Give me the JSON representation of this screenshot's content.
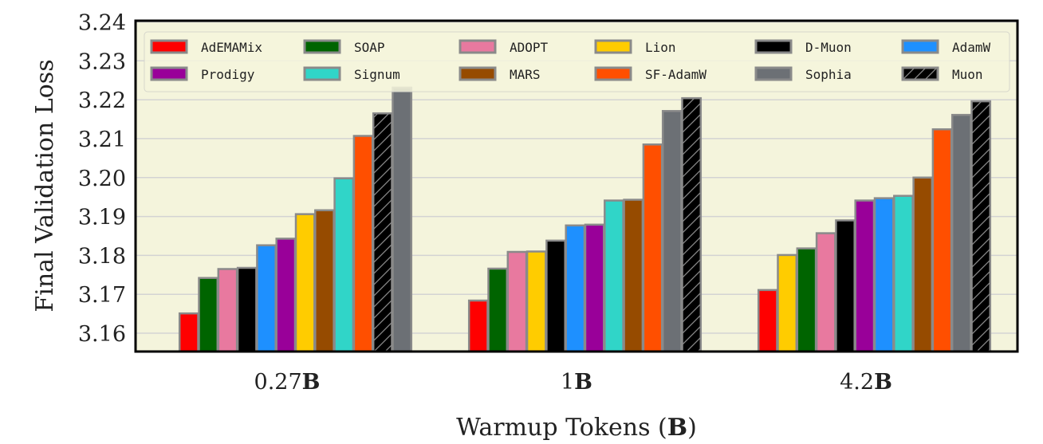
{
  "chart_data": {
    "type": "bar",
    "title": "",
    "xlabel": "Warmup Tokens (B)",
    "xlabel_parts": {
      "text": "Warmup Tokens (",
      "bold": "B",
      "close": ")"
    },
    "ylabel": "Final Validation Loss",
    "ylim": [
      3.1553,
      3.2403
    ],
    "yticks": [
      "3.16",
      "3.17",
      "3.18",
      "3.19",
      "3.20",
      "3.21",
      "3.22",
      "3.23",
      "3.24"
    ],
    "ytick_values": [
      3.16,
      3.17,
      3.18,
      3.19,
      3.2,
      3.21,
      3.22,
      3.23,
      3.24
    ],
    "grid": true,
    "legend_position": "top",
    "background_color": "#f4f4dc",
    "bar_edge_color": "#8a8a8a",
    "categories": [
      {
        "num": "0.27",
        "unit": "B"
      },
      {
        "num": "1",
        "unit": "B"
      },
      {
        "num": "4.2",
        "unit": "B"
      }
    ],
    "legend": [
      {
        "name": "AdEMAMix",
        "color": "#ff0000",
        "hatch": false
      },
      {
        "name": "SOAP",
        "color": "#006400",
        "hatch": false
      },
      {
        "name": "ADOPT",
        "color": "#e8799f",
        "hatch": false
      },
      {
        "name": "Lion",
        "color": "#ffcc00",
        "hatch": false
      },
      {
        "name": "D-Muon",
        "color": "#000000",
        "hatch": false
      },
      {
        "name": "AdamW",
        "color": "#1e90ff",
        "hatch": false
      },
      {
        "name": "Prodigy",
        "color": "#990099",
        "hatch": false
      },
      {
        "name": "Signum",
        "color": "#30d5c8",
        "hatch": false
      },
      {
        "name": "MARS",
        "color": "#964b00",
        "hatch": false
      },
      {
        "name": "SF-AdamW",
        "color": "#ff4f00",
        "hatch": false
      },
      {
        "name": "Sophia",
        "color": "#6c7075",
        "hatch": false
      },
      {
        "name": "Muon",
        "color": "#000000",
        "hatch": true
      }
    ],
    "groups": [
      {
        "category": "0.27B",
        "bars": [
          {
            "series": "AdEMAMix",
            "value": 3.1651
          },
          {
            "series": "SOAP",
            "value": 3.1742
          },
          {
            "series": "ADOPT",
            "value": 3.1765
          },
          {
            "series": "D-Muon",
            "value": 3.1768
          },
          {
            "series": "AdamW",
            "value": 3.1826
          },
          {
            "series": "Prodigy",
            "value": 3.1843
          },
          {
            "series": "Lion",
            "value": 3.1906
          },
          {
            "series": "MARS",
            "value": 3.1916
          },
          {
            "series": "Signum",
            "value": 3.1998
          },
          {
            "series": "SF-AdamW",
            "value": 3.2107
          },
          {
            "series": "Muon",
            "value": 3.2165
          },
          {
            "series": "Sophia",
            "value": 3.2231
          }
        ]
      },
      {
        "category": "1B",
        "bars": [
          {
            "series": "AdEMAMix",
            "value": 3.1684
          },
          {
            "series": "SOAP",
            "value": 3.1766
          },
          {
            "series": "ADOPT",
            "value": 3.1809
          },
          {
            "series": "Lion",
            "value": 3.181
          },
          {
            "series": "D-Muon",
            "value": 3.1838
          },
          {
            "series": "AdamW",
            "value": 3.1877
          },
          {
            "series": "Prodigy",
            "value": 3.1879
          },
          {
            "series": "Signum",
            "value": 3.1941
          },
          {
            "series": "MARS",
            "value": 3.1943
          },
          {
            "series": "SF-AdamW",
            "value": 3.2085
          },
          {
            "series": "Sophia",
            "value": 3.2171
          },
          {
            "series": "Muon",
            "value": 3.2204
          }
        ]
      },
      {
        "category": "4.2B",
        "bars": [
          {
            "series": "AdEMAMix",
            "value": 3.1711
          },
          {
            "series": "Lion",
            "value": 3.1801
          },
          {
            "series": "SOAP",
            "value": 3.1818
          },
          {
            "series": "ADOPT",
            "value": 3.1857
          },
          {
            "series": "D-Muon",
            "value": 3.189
          },
          {
            "series": "Prodigy",
            "value": 3.1941
          },
          {
            "series": "AdamW",
            "value": 3.1947
          },
          {
            "series": "Signum",
            "value": 3.1953
          },
          {
            "series": "MARS",
            "value": 3.2
          },
          {
            "series": "SF-AdamW",
            "value": 3.2124
          },
          {
            "series": "Sophia",
            "value": 3.2161
          },
          {
            "series": "Muon",
            "value": 3.2196
          }
        ]
      }
    ]
  }
}
